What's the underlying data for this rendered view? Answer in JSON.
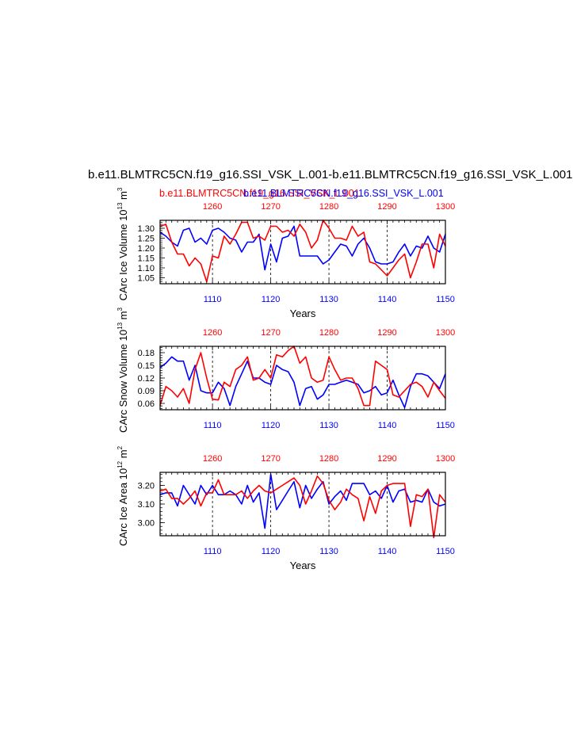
{
  "title": "b.e11.BLMTRC5CN.f19_g16.SSI_VSK_L.001-b.e11.BLMTRC5CN.f19_g16.SSI_VSK_L.001",
  "legend": {
    "red_case": "b.e11.BLMTRC5CN.f19_g16.SSI_VSK_L.001",
    "blue_case": "b.e11.BLMTRC5CN.f19_g16.SSI_VSK_L.001"
  },
  "colors": {
    "red": "#ff0000",
    "blue": "#0000ff"
  },
  "chart_data": [
    {
      "type": "line",
      "ylabel": "CArc Ice Volume 10",
      "ylabel_exp": "13",
      "ylabel_unit": "m",
      "ylabel_unit_exp": "3",
      "xlabel": "Years",
      "grid": "vertical dashed lines at top-axis decades",
      "ylim": [
        1.02,
        1.34
      ],
      "yticks": [
        1.05,
        1.1,
        1.15,
        1.2,
        1.25,
        1.3
      ],
      "ytick_labels": [
        "1.05",
        "1.10",
        "1.15",
        "1.20",
        "1.25",
        "1.30"
      ],
      "x_bottom": {
        "lim": [
          1101,
          1150
        ],
        "ticks": [
          1110,
          1120,
          1130,
          1140,
          1150
        ],
        "color": "#0000ff"
      },
      "x_top": {
        "lim": [
          1251,
          1300
        ],
        "ticks": [
          1260,
          1270,
          1280,
          1290,
          1300
        ],
        "color": "#ff0000"
      },
      "series": [
        {
          "color": "#0000ff",
          "x": [
            1101,
            1102,
            1103,
            1104,
            1105,
            1106,
            1107,
            1108,
            1109,
            1110,
            1111,
            1112,
            1113,
            1114,
            1115,
            1116,
            1117,
            1118,
            1119,
            1120,
            1121,
            1122,
            1123,
            1124,
            1125,
            1126,
            1127,
            1128,
            1129,
            1130,
            1131,
            1132,
            1133,
            1134,
            1135,
            1136,
            1137,
            1138,
            1139,
            1140,
            1141,
            1142,
            1143,
            1144,
            1145,
            1146,
            1147,
            1148,
            1149,
            1150
          ],
          "values": [
            1.28,
            1.26,
            1.23,
            1.21,
            1.29,
            1.3,
            1.23,
            1.25,
            1.22,
            1.29,
            1.3,
            1.28,
            1.25,
            1.24,
            1.18,
            1.23,
            1.23,
            1.27,
            1.09,
            1.22,
            1.13,
            1.25,
            1.26,
            1.31,
            1.16,
            1.16,
            1.16,
            1.16,
            1.12,
            1.14,
            1.18,
            1.22,
            1.21,
            1.16,
            1.22,
            1.25,
            1.2,
            1.13,
            1.12,
            1.12,
            1.13,
            1.18,
            1.22,
            1.16,
            1.21,
            1.2,
            1.26,
            1.2,
            1.18,
            1.27
          ]
        },
        {
          "color": "#ff0000",
          "x": [
            1101,
            1102,
            1103,
            1104,
            1105,
            1106,
            1107,
            1108,
            1109,
            1110,
            1111,
            1112,
            1113,
            1114,
            1115,
            1116,
            1117,
            1118,
            1119,
            1120,
            1121,
            1122,
            1123,
            1124,
            1125,
            1126,
            1127,
            1128,
            1129,
            1130,
            1131,
            1132,
            1133,
            1134,
            1135,
            1136,
            1137,
            1138,
            1139,
            1140,
            1141,
            1142,
            1143,
            1144,
            1145,
            1146,
            1147,
            1148,
            1149,
            1150
          ],
          "values": [
            1.31,
            1.32,
            1.23,
            1.17,
            1.17,
            1.11,
            1.15,
            1.12,
            1.03,
            1.16,
            1.15,
            1.26,
            1.22,
            1.27,
            1.33,
            1.33,
            1.25,
            1.26,
            1.24,
            1.31,
            1.31,
            1.28,
            1.29,
            1.26,
            1.32,
            1.28,
            1.2,
            1.24,
            1.34,
            1.3,
            1.25,
            1.25,
            1.24,
            1.31,
            1.26,
            1.28,
            1.13,
            1.12,
            1.09,
            1.06,
            1.1,
            1.14,
            1.17,
            1.05,
            1.13,
            1.22,
            1.22,
            1.1,
            1.27,
            1.21
          ]
        }
      ]
    },
    {
      "type": "line",
      "ylabel": "CArc Snow Volume 10",
      "ylabel_exp": "13",
      "ylabel_unit": "m",
      "ylabel_unit_exp": "3",
      "xlabel": "",
      "grid": "vertical dashed lines at top-axis decades",
      "ylim": [
        0.045,
        0.195
      ],
      "yticks": [
        0.06,
        0.09,
        0.12,
        0.15,
        0.18
      ],
      "ytick_labels": [
        "0.06",
        "0.09",
        "0.12",
        "0.15",
        "0.18"
      ],
      "x_bottom": {
        "lim": [
          1101,
          1150
        ],
        "ticks": [
          1110,
          1120,
          1130,
          1140,
          1150
        ],
        "color": "#0000ff"
      },
      "x_top": {
        "lim": [
          1251,
          1300
        ],
        "ticks": [
          1260,
          1270,
          1280,
          1290,
          1300
        ],
        "color": "#ff0000"
      },
      "series": [
        {
          "color": "#0000ff",
          "x": [
            1101,
            1102,
            1103,
            1104,
            1105,
            1106,
            1107,
            1108,
            1109,
            1110,
            1111,
            1112,
            1113,
            1114,
            1115,
            1116,
            1117,
            1118,
            1119,
            1120,
            1121,
            1122,
            1123,
            1124,
            1125,
            1126,
            1127,
            1128,
            1129,
            1130,
            1131,
            1132,
            1133,
            1134,
            1135,
            1136,
            1137,
            1138,
            1139,
            1140,
            1141,
            1142,
            1143,
            1144,
            1145,
            1146,
            1147,
            1148,
            1149,
            1150
          ],
          "values": [
            0.145,
            0.155,
            0.17,
            0.16,
            0.16,
            0.115,
            0.15,
            0.09,
            0.085,
            0.085,
            0.11,
            0.095,
            0.055,
            0.1,
            0.13,
            0.16,
            0.12,
            0.12,
            0.11,
            0.105,
            0.15,
            0.14,
            0.135,
            0.11,
            0.055,
            0.095,
            0.1,
            0.07,
            0.08,
            0.105,
            0.105,
            0.11,
            0.115,
            0.11,
            0.105,
            0.085,
            0.09,
            0.1,
            0.08,
            0.085,
            0.115,
            0.08,
            0.05,
            0.1,
            0.13,
            0.13,
            0.125,
            0.11,
            0.095,
            0.13
          ]
        },
        {
          "color": "#ff0000",
          "x": [
            1101,
            1102,
            1103,
            1104,
            1105,
            1106,
            1107,
            1108,
            1109,
            1110,
            1111,
            1112,
            1113,
            1114,
            1115,
            1116,
            1117,
            1118,
            1119,
            1120,
            1121,
            1122,
            1123,
            1124,
            1125,
            1126,
            1127,
            1128,
            1129,
            1130,
            1131,
            1132,
            1133,
            1134,
            1135,
            1136,
            1137,
            1138,
            1139,
            1140,
            1141,
            1142,
            1143,
            1144,
            1145,
            1146,
            1147,
            1148,
            1149,
            1150
          ],
          "values": [
            0.055,
            0.1,
            0.09,
            0.075,
            0.095,
            0.06,
            0.14,
            0.18,
            0.12,
            0.07,
            0.068,
            0.11,
            0.1,
            0.14,
            0.15,
            0.17,
            0.115,
            0.12,
            0.14,
            0.12,
            0.175,
            0.17,
            0.185,
            0.195,
            0.155,
            0.17,
            0.12,
            0.11,
            0.115,
            0.17,
            0.14,
            0.115,
            0.12,
            0.12,
            0.095,
            0.055,
            0.055,
            0.16,
            0.15,
            0.14,
            0.08,
            0.075,
            0.09,
            0.105,
            0.11,
            0.1,
            0.075,
            0.11,
            0.09,
            0.072
          ]
        }
      ]
    },
    {
      "type": "line",
      "ylabel": "CArc Ice Area 10",
      "ylabel_exp": "12",
      "ylabel_unit": "m",
      "ylabel_unit_exp": "2",
      "xlabel": "Years",
      "grid": "vertical dashed lines at top-axis decades",
      "ylim": [
        2.93,
        3.27
      ],
      "yticks": [
        3.0,
        3.1,
        3.2
      ],
      "ytick_labels": [
        "3.00",
        "3.10",
        "3.20"
      ],
      "x_bottom": {
        "lim": [
          1101,
          1150
        ],
        "ticks": [
          1110,
          1120,
          1130,
          1140,
          1150
        ],
        "color": "#0000ff"
      },
      "x_top": {
        "lim": [
          1251,
          1300
        ],
        "ticks": [
          1260,
          1270,
          1280,
          1290,
          1300
        ],
        "color": "#ff0000"
      },
      "series": [
        {
          "color": "#0000ff",
          "x": [
            1101,
            1102,
            1103,
            1104,
            1105,
            1106,
            1107,
            1108,
            1109,
            1110,
            1111,
            1112,
            1113,
            1114,
            1115,
            1116,
            1117,
            1118,
            1119,
            1120,
            1121,
            1122,
            1123,
            1124,
            1125,
            1126,
            1127,
            1128,
            1129,
            1130,
            1131,
            1132,
            1133,
            1134,
            1135,
            1136,
            1137,
            1138,
            1139,
            1140,
            1141,
            1142,
            1143,
            1144,
            1145,
            1146,
            1147,
            1148,
            1149,
            1150
          ],
          "values": [
            3.15,
            3.16,
            3.16,
            3.09,
            3.2,
            3.15,
            3.1,
            3.2,
            3.15,
            3.2,
            3.15,
            3.15,
            3.17,
            3.15,
            3.1,
            3.2,
            3.11,
            3.16,
            2.97,
            3.26,
            3.07,
            3.12,
            3.17,
            3.22,
            3.08,
            3.2,
            3.13,
            3.18,
            3.22,
            3.1,
            3.14,
            3.17,
            3.12,
            3.21,
            3.21,
            3.21,
            3.15,
            3.17,
            3.13,
            3.2,
            3.11,
            3.17,
            3.18,
            3.11,
            3.12,
            3.11,
            3.18,
            3.11,
            3.09,
            3.1
          ]
        },
        {
          "color": "#ff0000",
          "x": [
            1101,
            1102,
            1103,
            1104,
            1105,
            1106,
            1107,
            1108,
            1109,
            1110,
            1111,
            1112,
            1113,
            1114,
            1115,
            1116,
            1117,
            1118,
            1119,
            1120,
            1121,
            1122,
            1123,
            1124,
            1125,
            1126,
            1127,
            1128,
            1129,
            1130,
            1131,
            1132,
            1133,
            1134,
            1135,
            1136,
            1137,
            1138,
            1139,
            1140,
            1141,
            1142,
            1143,
            1144,
            1145,
            1146,
            1147,
            1148,
            1149,
            1150
          ],
          "values": [
            3.17,
            3.18,
            3.13,
            3.13,
            3.1,
            3.13,
            3.17,
            3.09,
            3.16,
            3.16,
            3.23,
            3.15,
            3.15,
            3.15,
            3.17,
            3.13,
            3.17,
            3.2,
            3.17,
            3.16,
            3.18,
            3.2,
            3.22,
            3.24,
            3.2,
            3.1,
            3.17,
            3.25,
            3.21,
            3.12,
            3.07,
            3.11,
            3.18,
            3.15,
            3.13,
            3.01,
            3.14,
            3.05,
            3.17,
            3.2,
            3.21,
            3.21,
            3.21,
            2.98,
            3.15,
            3.14,
            3.18,
            2.92,
            3.15,
            3.11
          ]
        }
      ]
    }
  ]
}
